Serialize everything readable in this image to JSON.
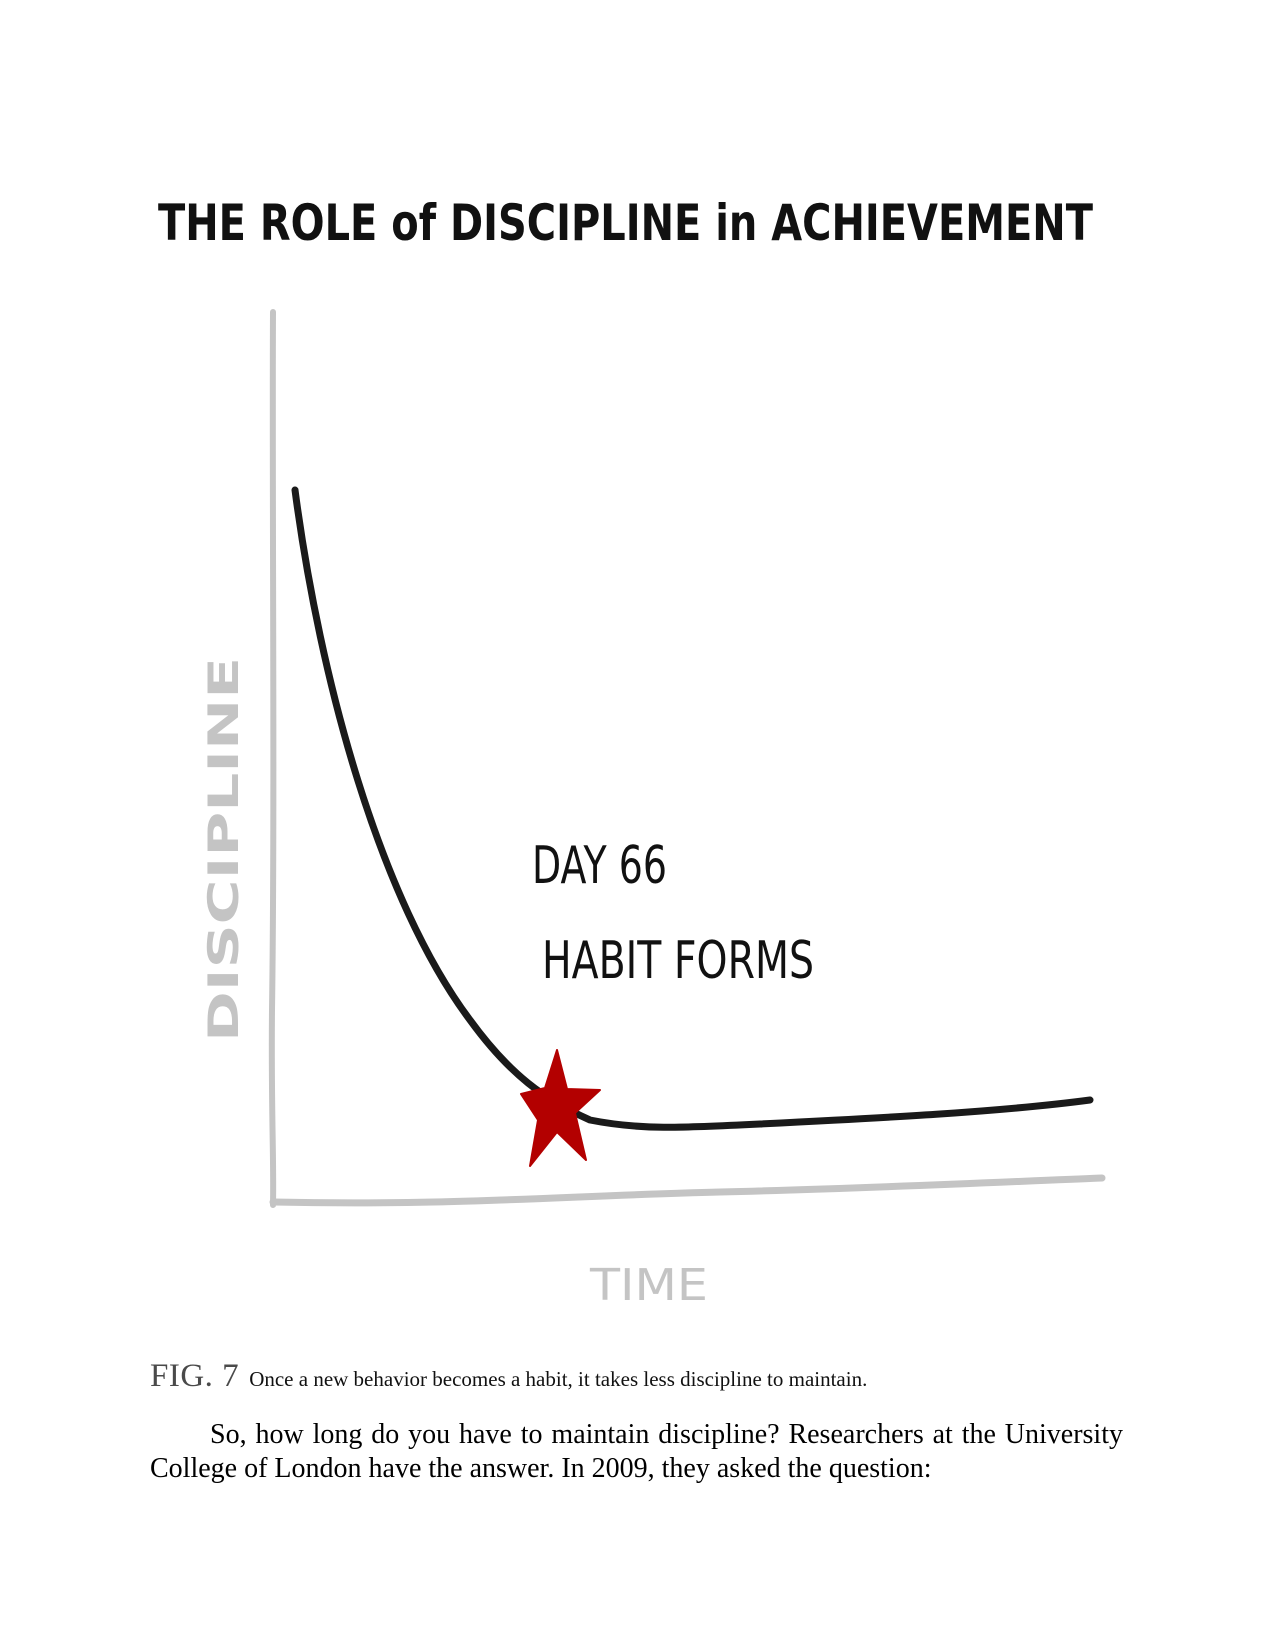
{
  "figure": {
    "title": "THE ROLE of DISCIPLINE in ACHIEVEMENT",
    "y_axis_label": "DISCIPLINE",
    "x_axis_label": "TIME",
    "annotation_line1": "DAY 66",
    "annotation_line2": "HABIT FORMS",
    "marker_icon": "star-icon",
    "marker_color": "#b30000",
    "axis_color": "#c4c4c4",
    "curve_color": "#1a1a1a"
  },
  "chart_data": {
    "type": "line",
    "title": "THE ROLE of DISCIPLINE in ACHIEVEMENT",
    "xlabel": "TIME",
    "ylabel": "DISCIPLINE",
    "grid": false,
    "legend": "none",
    "annotations": [
      {
        "label": "DAY 66 HABIT FORMS",
        "x": 66,
        "marker": "star"
      }
    ]
  },
  "caption": {
    "label": "FIG. 7",
    "text": "Once a new behavior becomes a habit, it takes less discipline to maintain."
  },
  "body": {
    "paragraph": "So, how long do you have to maintain discipline? Researchers at the University College of London have the answer. In 2009, they asked the question:"
  }
}
